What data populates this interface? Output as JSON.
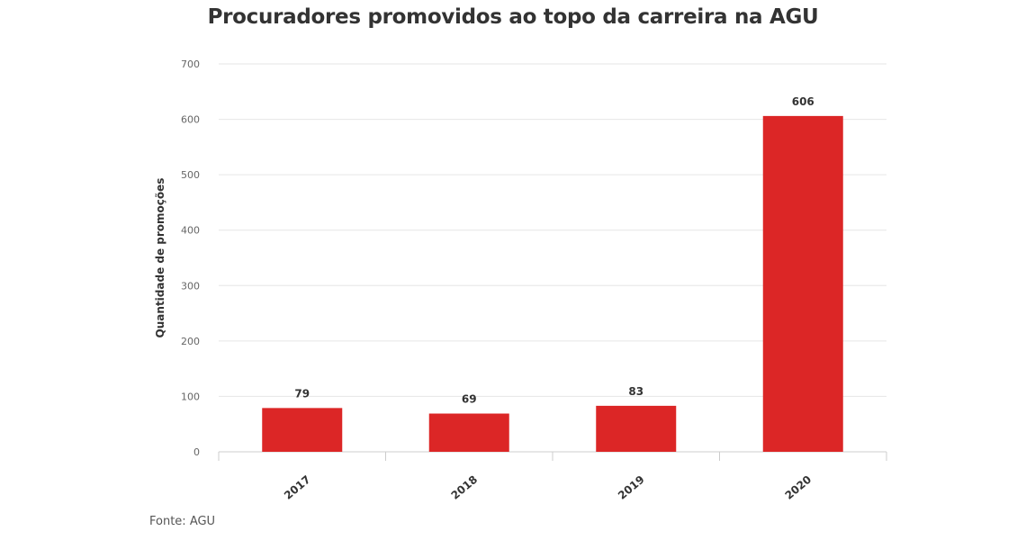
{
  "chart_data": {
    "type": "bar",
    "title": "Procuradores promovidos ao topo da carreira na AGU",
    "xlabel": "",
    "ylabel": "Quantidade de promoções",
    "categories": [
      "2017",
      "2018",
      "2019",
      "2020"
    ],
    "values": [
      79,
      69,
      83,
      606
    ],
    "ylim": [
      0,
      700
    ],
    "yticks": [
      0,
      100,
      200,
      300,
      400,
      500,
      600,
      700
    ],
    "grid": true,
    "legend": "none",
    "bar_color": "#dc2626"
  },
  "footer": {
    "source": "Fonte: AGU"
  }
}
